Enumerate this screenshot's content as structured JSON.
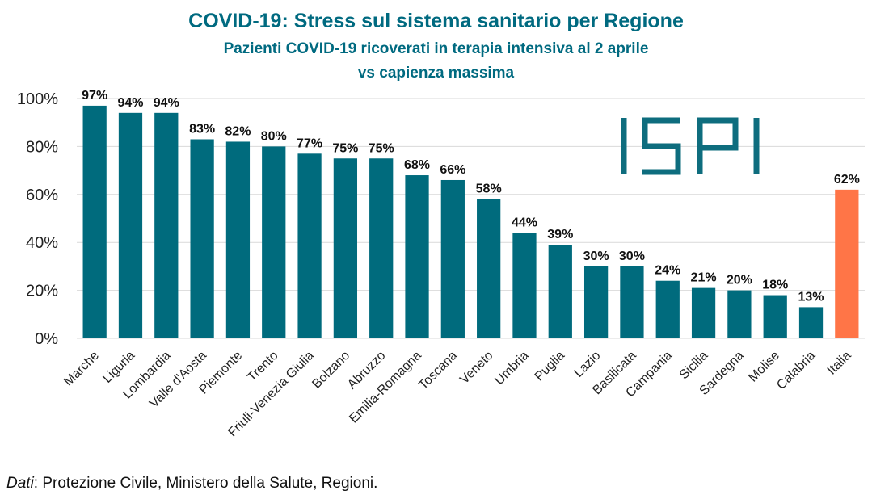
{
  "title": "COVID-19: Stress sul sistema sanitario per Regione",
  "subtitle_line1": "Pazienti COVID-19 ricoverati in terapia intensiva al 2 aprile",
  "subtitle_line2": "vs capienza massima",
  "logo_text": "ISPI",
  "source_label": "Dati",
  "source_text": ": Protezione Civile, Ministero della Salute, Regioni.",
  "colors": {
    "bar": "#006b7d",
    "highlight": "#ff7547",
    "title": "#006a80",
    "logo": "#0e6d7e"
  },
  "chart_data": {
    "type": "bar",
    "title": "COVID-19: Stress sul sistema sanitario per Regione",
    "subtitle": "Pazienti COVID-19 ricoverati in terapia intensiva al 2 aprile vs capienza massima",
    "xlabel": "",
    "ylabel": "",
    "ylim": [
      0,
      100
    ],
    "yticks": [
      "0%",
      "20%",
      "40%",
      "60%",
      "80%",
      "100%"
    ],
    "grid": true,
    "categories": [
      "Marche",
      "Liguria",
      "Lombardia",
      "Valle d'Aosta",
      "Piemonte",
      "Trento",
      "Friuli-Venezia Giulia",
      "Bolzano",
      "Abruzzo",
      "Emilia-Romagna",
      "Toscana",
      "Veneto",
      "Umbria",
      "Puglia",
      "Lazio",
      "Basilicata",
      "Campania",
      "Sicilia",
      "Sardegna",
      "Molise",
      "Calabria",
      "Italia"
    ],
    "values": [
      97,
      94,
      94,
      83,
      82,
      80,
      77,
      75,
      75,
      68,
      66,
      58,
      44,
      39,
      30,
      30,
      24,
      21,
      20,
      18,
      13,
      62
    ],
    "labels": [
      "97%",
      "94%",
      "94%",
      "83%",
      "82%",
      "80%",
      "77%",
      "75%",
      "75%",
      "68%",
      "66%",
      "58%",
      "44%",
      "39%",
      "30%",
      "30%",
      "24%",
      "21%",
      "20%",
      "18%",
      "13%",
      "62%"
    ],
    "highlight": "Italia"
  }
}
